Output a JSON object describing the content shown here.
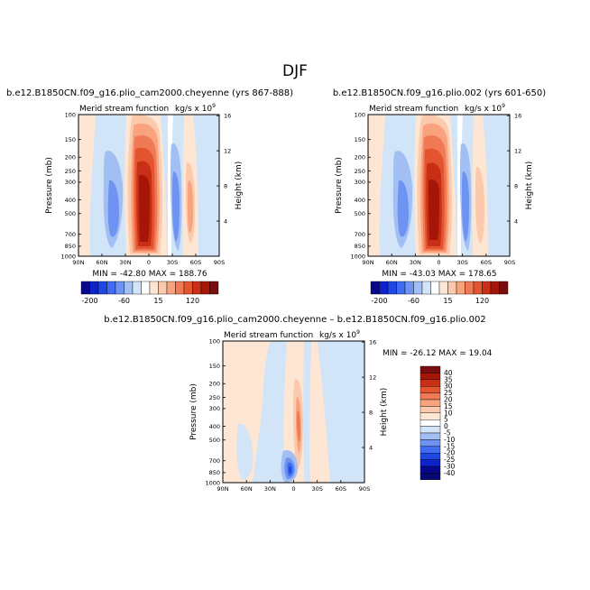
{
  "page_title": "DJF",
  "colors": {
    "neg": [
      "#08088f",
      "#0e23c9",
      "#1f48e3",
      "#3f6cf0",
      "#6f93f2",
      "#a2bff4",
      "#d2e4f7"
    ],
    "pos": [
      "#fde6d4",
      "#fbc9ab",
      "#f8a27e",
      "#f07a55",
      "#e2552f",
      "#c92f16",
      "#a51609",
      "#7a0d0d"
    ]
  },
  "chart_data": [
    {
      "type": "heatmap",
      "panel": "a",
      "title": "b.e12.B1850CN.f09_g16.plio_cam2000.cheyenne (yrs 867-888)",
      "subtitle_left": "Merid stream function",
      "units": "kg/s x 10",
      "units_exp": "9",
      "ylabel": "Pressure (mb)",
      "ylabel_right": "Height (km)",
      "x_ticks": [
        "90N",
        "60N",
        "30N",
        "0",
        "30S",
        "60S",
        "90S"
      ],
      "y_ticks": [
        "100",
        "150",
        "200",
        "250",
        "300",
        "400",
        "500",
        "700",
        "850",
        "1000"
      ],
      "y_ticks_right": [
        "16",
        "12",
        "8",
        "4"
      ],
      "stats": "MIN = -42.80   MAX = 188.76",
      "min": -42.8,
      "max": 188.76,
      "xlim": [
        90,
        -90
      ],
      "ylim": [
        1000,
        100
      ],
      "colorbar_labels": [
        "-200",
        "-60",
        "15",
        "120"
      ],
      "cells": [
        {
          "lat": -12,
          "lev": 400,
          "value": 160
        },
        {
          "lat": -28,
          "lev": 400,
          "value": 35
        },
        {
          "lat": 5,
          "lev": 400,
          "value": -15
        },
        {
          "lat": 48,
          "lev": 400,
          "value": 3
        },
        {
          "lat": -57,
          "lev": 400,
          "value": -5
        }
      ]
    },
    {
      "type": "heatmap",
      "panel": "b",
      "title": "b.e12.B1850CN.f09_g16.plio.002 (yrs 601-650)",
      "subtitle_left": "Merid stream function",
      "units": "kg/s x 10",
      "units_exp": "9",
      "ylabel": "Pressure (mb)",
      "ylabel_right": "Height (km)",
      "x_ticks": [
        "90N",
        "60N",
        "30N",
        "0",
        "30S",
        "60S",
        "90S"
      ],
      "y_ticks": [
        "100",
        "150",
        "200",
        "250",
        "300",
        "400",
        "500",
        "700",
        "850",
        "1000"
      ],
      "y_ticks_right": [
        "16",
        "12",
        "8",
        "4"
      ],
      "stats": "MIN = -43.03   MAX = 178.65",
      "min": -43.03,
      "max": 178.65,
      "xlim": [
        90,
        -90
      ],
      "ylim": [
        1000,
        100
      ],
      "colorbar_labels": [
        "-200",
        "-60",
        "15",
        "120"
      ],
      "cells": [
        {
          "lat": -12,
          "lev": 400,
          "value": 150
        },
        {
          "lat": -28,
          "lev": 400,
          "value": 33
        },
        {
          "lat": 5,
          "lev": 400,
          "value": -14
        },
        {
          "lat": 48,
          "lev": 400,
          "value": 3
        },
        {
          "lat": -57,
          "lev": 400,
          "value": -5
        }
      ]
    },
    {
      "type": "heatmap",
      "panel": "diff",
      "title": "b.e12.B1850CN.f09_g16.plio_cam2000.cheyenne – b.e12.B1850CN.f09_g16.plio.002",
      "subtitle_left": "Merid stream function",
      "units": "kg/s x 10",
      "units_exp": "9",
      "ylabel": "Pressure (mb)",
      "ylabel_right": "Height (km)",
      "x_ticks": [
        "90N",
        "60N",
        "30N",
        "0",
        "30S",
        "60S",
        "90S"
      ],
      "y_ticks": [
        "100",
        "150",
        "200",
        "250",
        "300",
        "400",
        "500",
        "700",
        "850",
        "1000"
      ],
      "y_ticks_right": [
        "16",
        "12",
        "8",
        "4"
      ],
      "stats": "MIN = -26.12   MAX =  19.04",
      "min": -26.12,
      "max": 19.04,
      "xlim": [
        90,
        -90
      ],
      "ylim": [
        1000,
        100
      ],
      "colorbar_labels": [
        "40",
        "35",
        "30",
        "25",
        "20",
        "15",
        "10",
        "5",
        "0",
        "-5",
        "-10",
        "-15",
        "-20",
        "-25",
        "-30",
        "-40"
      ],
      "cells": [
        {
          "lat": 4,
          "lev": 870,
          "value": -26
        },
        {
          "lat": -3,
          "lev": 380,
          "value": 19
        },
        {
          "lat": -15,
          "lev": 500,
          "value": 4
        },
        {
          "lat": 45,
          "lev": 500,
          "value": 3
        },
        {
          "lat": 20,
          "lev": 400,
          "value": -3
        }
      ]
    }
  ]
}
